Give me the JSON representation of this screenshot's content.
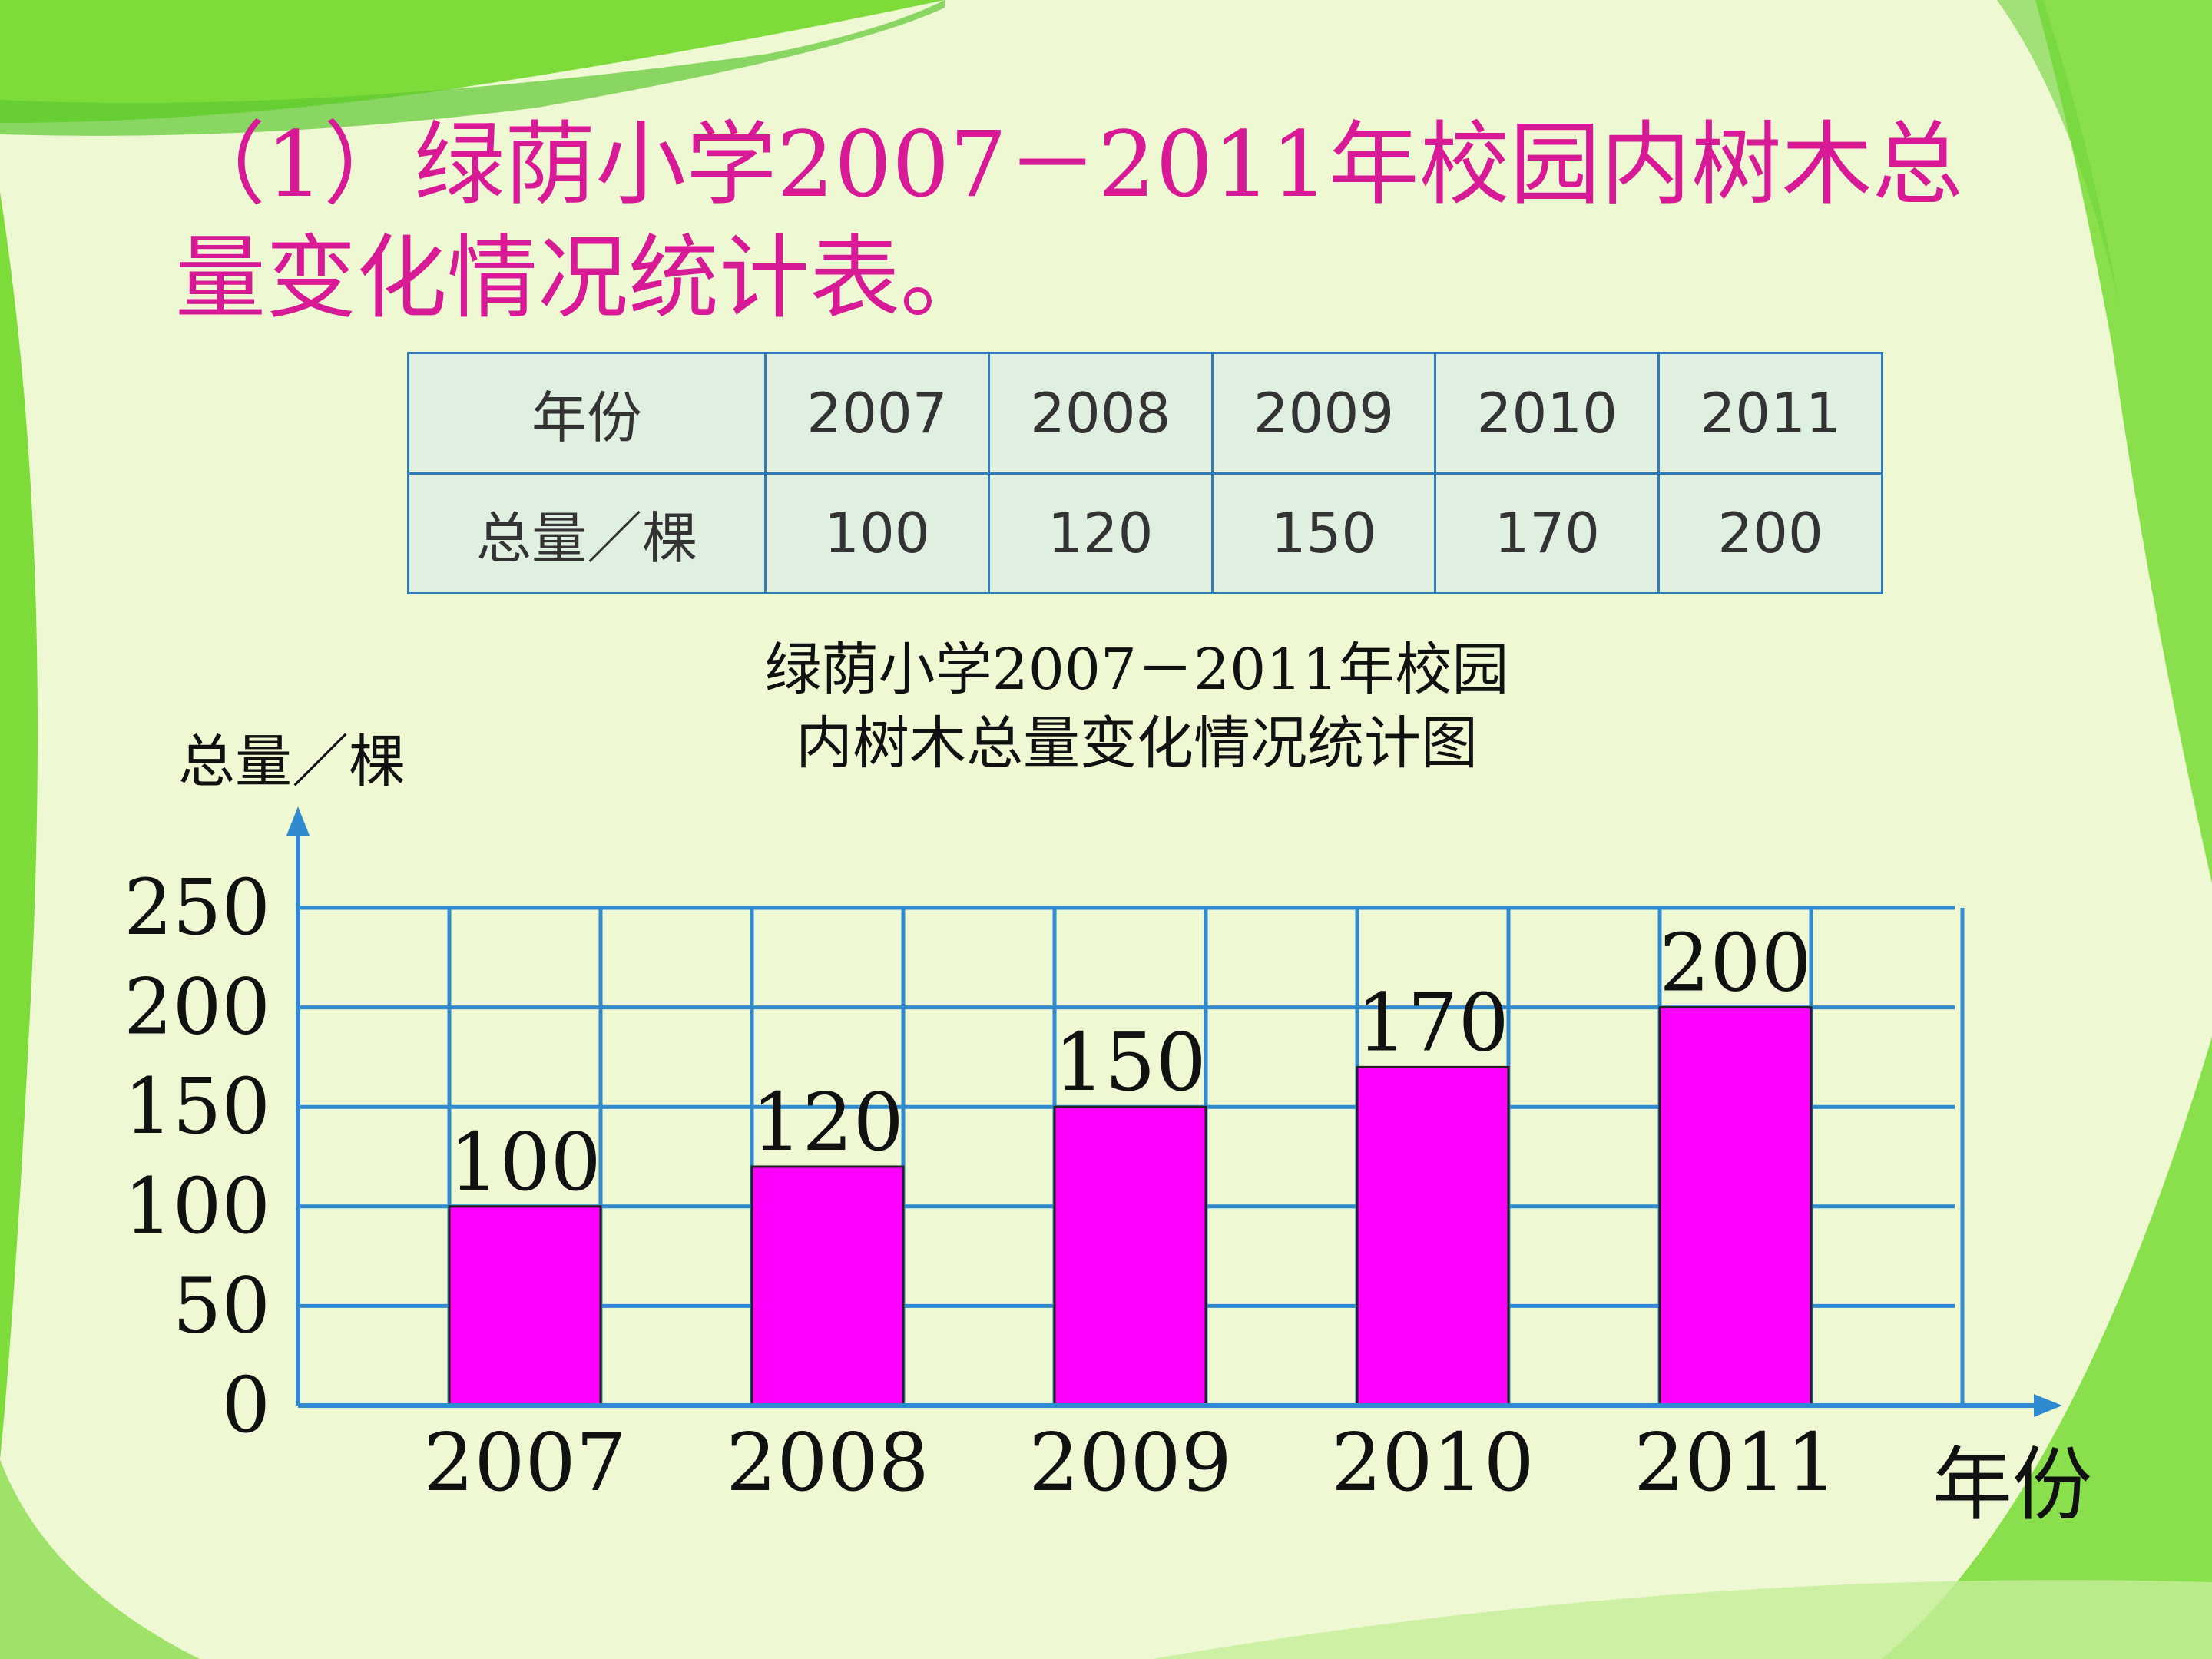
{
  "title": "（1）绿荫小学2007－2011年校园内树木总量变化情况统计表。",
  "table": {
    "row1_header": "年份",
    "row2_header": "总量／棵",
    "years": [
      "2007",
      "2008",
      "2009",
      "2010",
      "2011"
    ],
    "totals": [
      "100",
      "120",
      "150",
      "170",
      "200"
    ]
  },
  "chart_data": {
    "type": "bar",
    "title_line1": "绿荫小学2007－2011年校园",
    "title_line2": "内树木总量变化情况统计图",
    "ylabel": "总量／棵",
    "xlabel": "年份",
    "categories": [
      "2007",
      "2008",
      "2009",
      "2010",
      "2011"
    ],
    "values": [
      100,
      120,
      150,
      170,
      200
    ],
    "yticks": [
      0,
      50,
      100,
      150,
      200,
      250
    ],
    "ylim": [
      0,
      250
    ],
    "grid": true,
    "bar_color": "#ff00ff",
    "grid_color": "#2f8ad0"
  }
}
